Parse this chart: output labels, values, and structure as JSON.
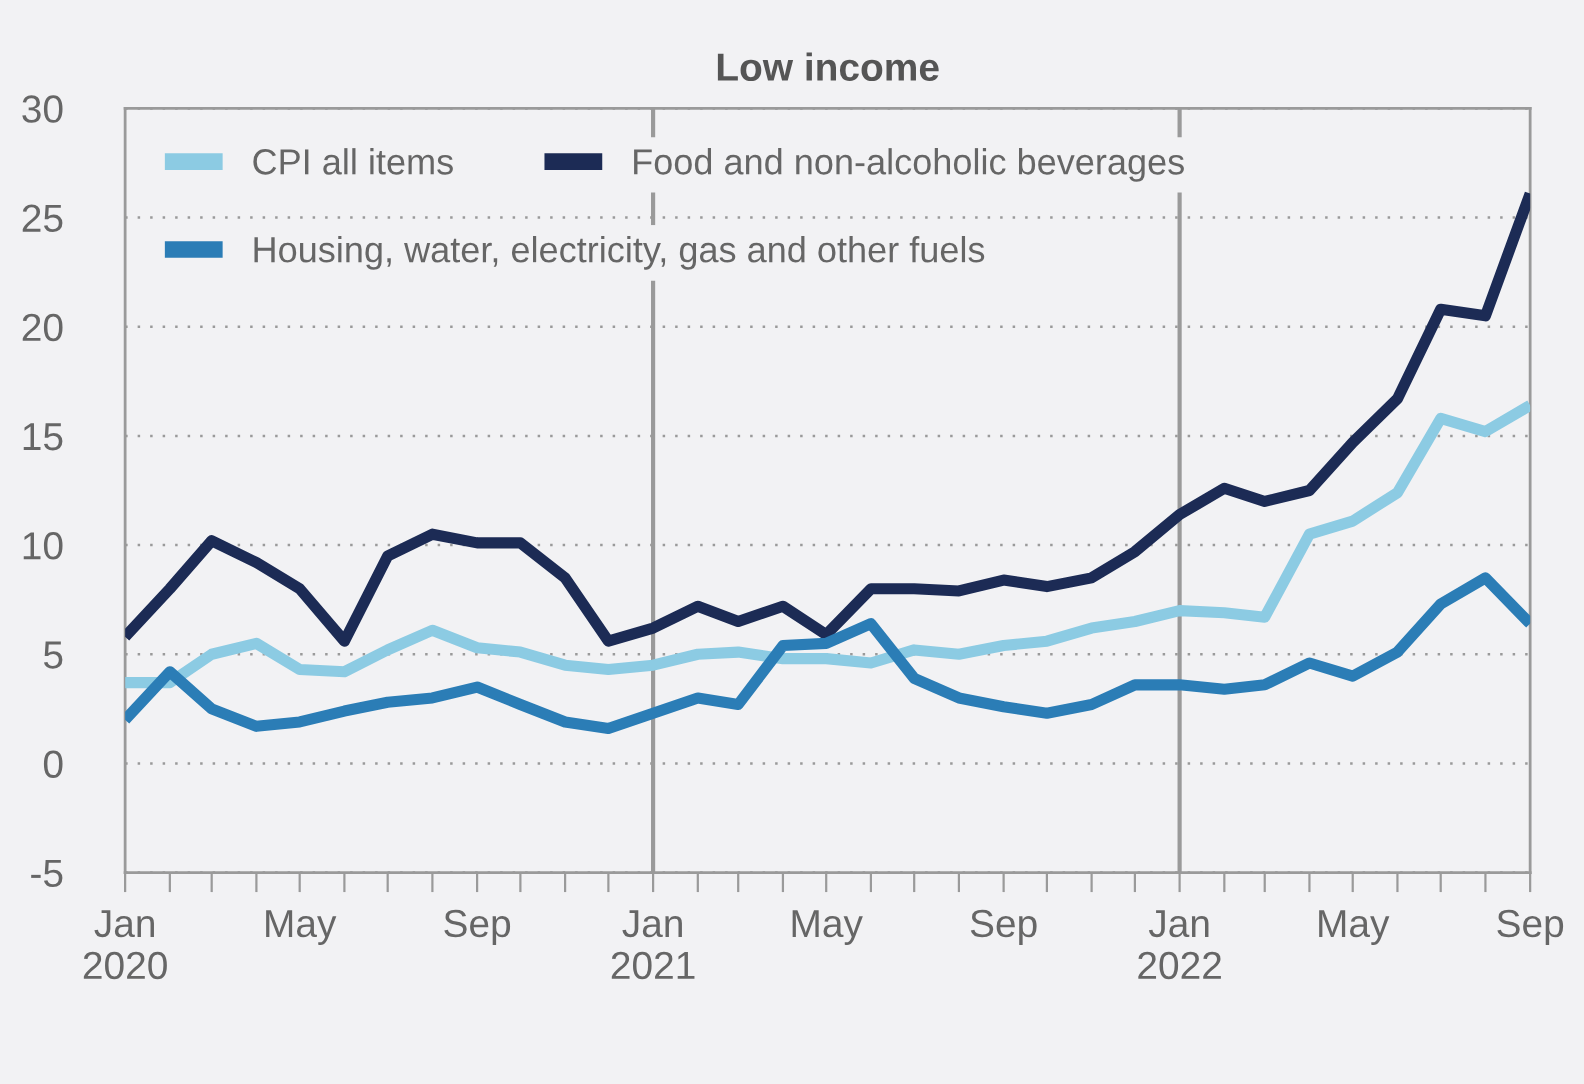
{
  "chart_data": {
    "type": "line",
    "title": "Low income",
    "x": [
      "2020-01",
      "2020-02",
      "2020-03",
      "2020-04",
      "2020-05",
      "2020-06",
      "2020-07",
      "2020-08",
      "2020-09",
      "2020-10",
      "2020-11",
      "2020-12",
      "2021-01",
      "2021-02",
      "2021-03",
      "2021-04",
      "2021-05",
      "2021-06",
      "2021-07",
      "2021-08",
      "2021-09",
      "2021-10",
      "2021-11",
      "2021-12",
      "2022-01",
      "2022-02",
      "2022-03",
      "2022-04",
      "2022-05",
      "2022-06",
      "2022-07",
      "2022-08",
      "2022-09"
    ],
    "series": [
      {
        "name": "CPI all items",
        "color": "#8ccbe3",
        "values": [
          3.7,
          3.7,
          5.0,
          5.5,
          4.3,
          4.2,
          5.2,
          6.1,
          5.3,
          5.1,
          4.5,
          4.3,
          4.5,
          5.0,
          5.1,
          4.8,
          4.8,
          4.6,
          5.2,
          5.0,
          5.4,
          5.6,
          6.2,
          6.5,
          7.0,
          6.9,
          6.7,
          10.5,
          11.1,
          12.4,
          15.8,
          15.2,
          16.4
        ]
      },
      {
        "name": "Food and non-alcoholic beverages",
        "color": "#1c2b55",
        "values": [
          5.8,
          8.0,
          10.2,
          9.2,
          8.0,
          5.6,
          9.5,
          10.5,
          10.1,
          10.1,
          8.5,
          5.6,
          6.2,
          7.2,
          6.5,
          7.2,
          5.9,
          8.0,
          8.0,
          7.9,
          8.4,
          8.1,
          8.5,
          9.7,
          11.4,
          12.6,
          12.0,
          12.5,
          14.7,
          16.7,
          20.8,
          20.5,
          26.1
        ]
      },
      {
        "name": "Housing, water, electricity, gas and other fuels",
        "color": "#2b7db6",
        "values": [
          2.0,
          4.2,
          2.5,
          1.7,
          1.9,
          2.4,
          2.8,
          3.0,
          3.5,
          2.7,
          1.9,
          1.6,
          2.3,
          3.0,
          2.7,
          5.4,
          5.5,
          6.4,
          3.9,
          3.0,
          2.6,
          2.3,
          2.7,
          3.6,
          3.6,
          3.4,
          3.6,
          4.6,
          4.0,
          5.1,
          7.3,
          8.5,
          6.4
        ]
      }
    ],
    "xlim": [
      "2020-01",
      "2022-09"
    ],
    "xticks": [
      {
        "value": "2020-01",
        "label": "Jan\n2020"
      },
      {
        "value": "2020-02",
        "label": null
      },
      {
        "value": "2020-03",
        "label": null
      },
      {
        "value": "2020-04",
        "label": null
      },
      {
        "value": "2020-05",
        "label": "May"
      },
      {
        "value": "2020-06",
        "label": null
      },
      {
        "value": "2020-07",
        "label": null
      },
      {
        "value": "2020-08",
        "label": null
      },
      {
        "value": "2020-09",
        "label": "Sep"
      },
      {
        "value": "2020-10",
        "label": null
      },
      {
        "value": "2020-11",
        "label": null
      },
      {
        "value": "2020-12",
        "label": null
      },
      {
        "value": "2021-01",
        "label": "Jan\n2021"
      },
      {
        "value": "2021-02",
        "label": null
      },
      {
        "value": "2021-03",
        "label": null
      },
      {
        "value": "2021-04",
        "label": null
      },
      {
        "value": "2021-05",
        "label": "May"
      },
      {
        "value": "2021-06",
        "label": null
      },
      {
        "value": "2021-07",
        "label": null
      },
      {
        "value": "2021-08",
        "label": null
      },
      {
        "value": "2021-09",
        "label": "Sep"
      },
      {
        "value": "2021-10",
        "label": null
      },
      {
        "value": "2021-11",
        "label": null
      },
      {
        "value": "2021-12",
        "label": null
      },
      {
        "value": "2022-01",
        "label": "Jan\n2022"
      },
      {
        "value": "2022-02",
        "label": null
      },
      {
        "value": "2022-03",
        "label": null
      },
      {
        "value": "2022-04",
        "label": null
      },
      {
        "value": "2022-05",
        "label": "May"
      },
      {
        "value": "2022-06",
        "label": null
      },
      {
        "value": "2022-07",
        "label": null
      },
      {
        "value": "2022-08",
        "label": null
      },
      {
        "value": "2022-09",
        "label": "Sep"
      }
    ],
    "ylim": [
      -5,
      30
    ],
    "yticks": [
      -5,
      0,
      5,
      10,
      15,
      20,
      25,
      30
    ],
    "ref_lines": [
      {
        "axis": "x",
        "value": "2021-01",
        "color": "#9a9a9a",
        "line_style": "solid"
      },
      {
        "axis": "x",
        "value": "2022-01",
        "color": "#9a9a9a",
        "line_style": "solid"
      }
    ],
    "grid": "y",
    "legend": "top left",
    "line_style": "solid",
    "marker": "none"
  }
}
